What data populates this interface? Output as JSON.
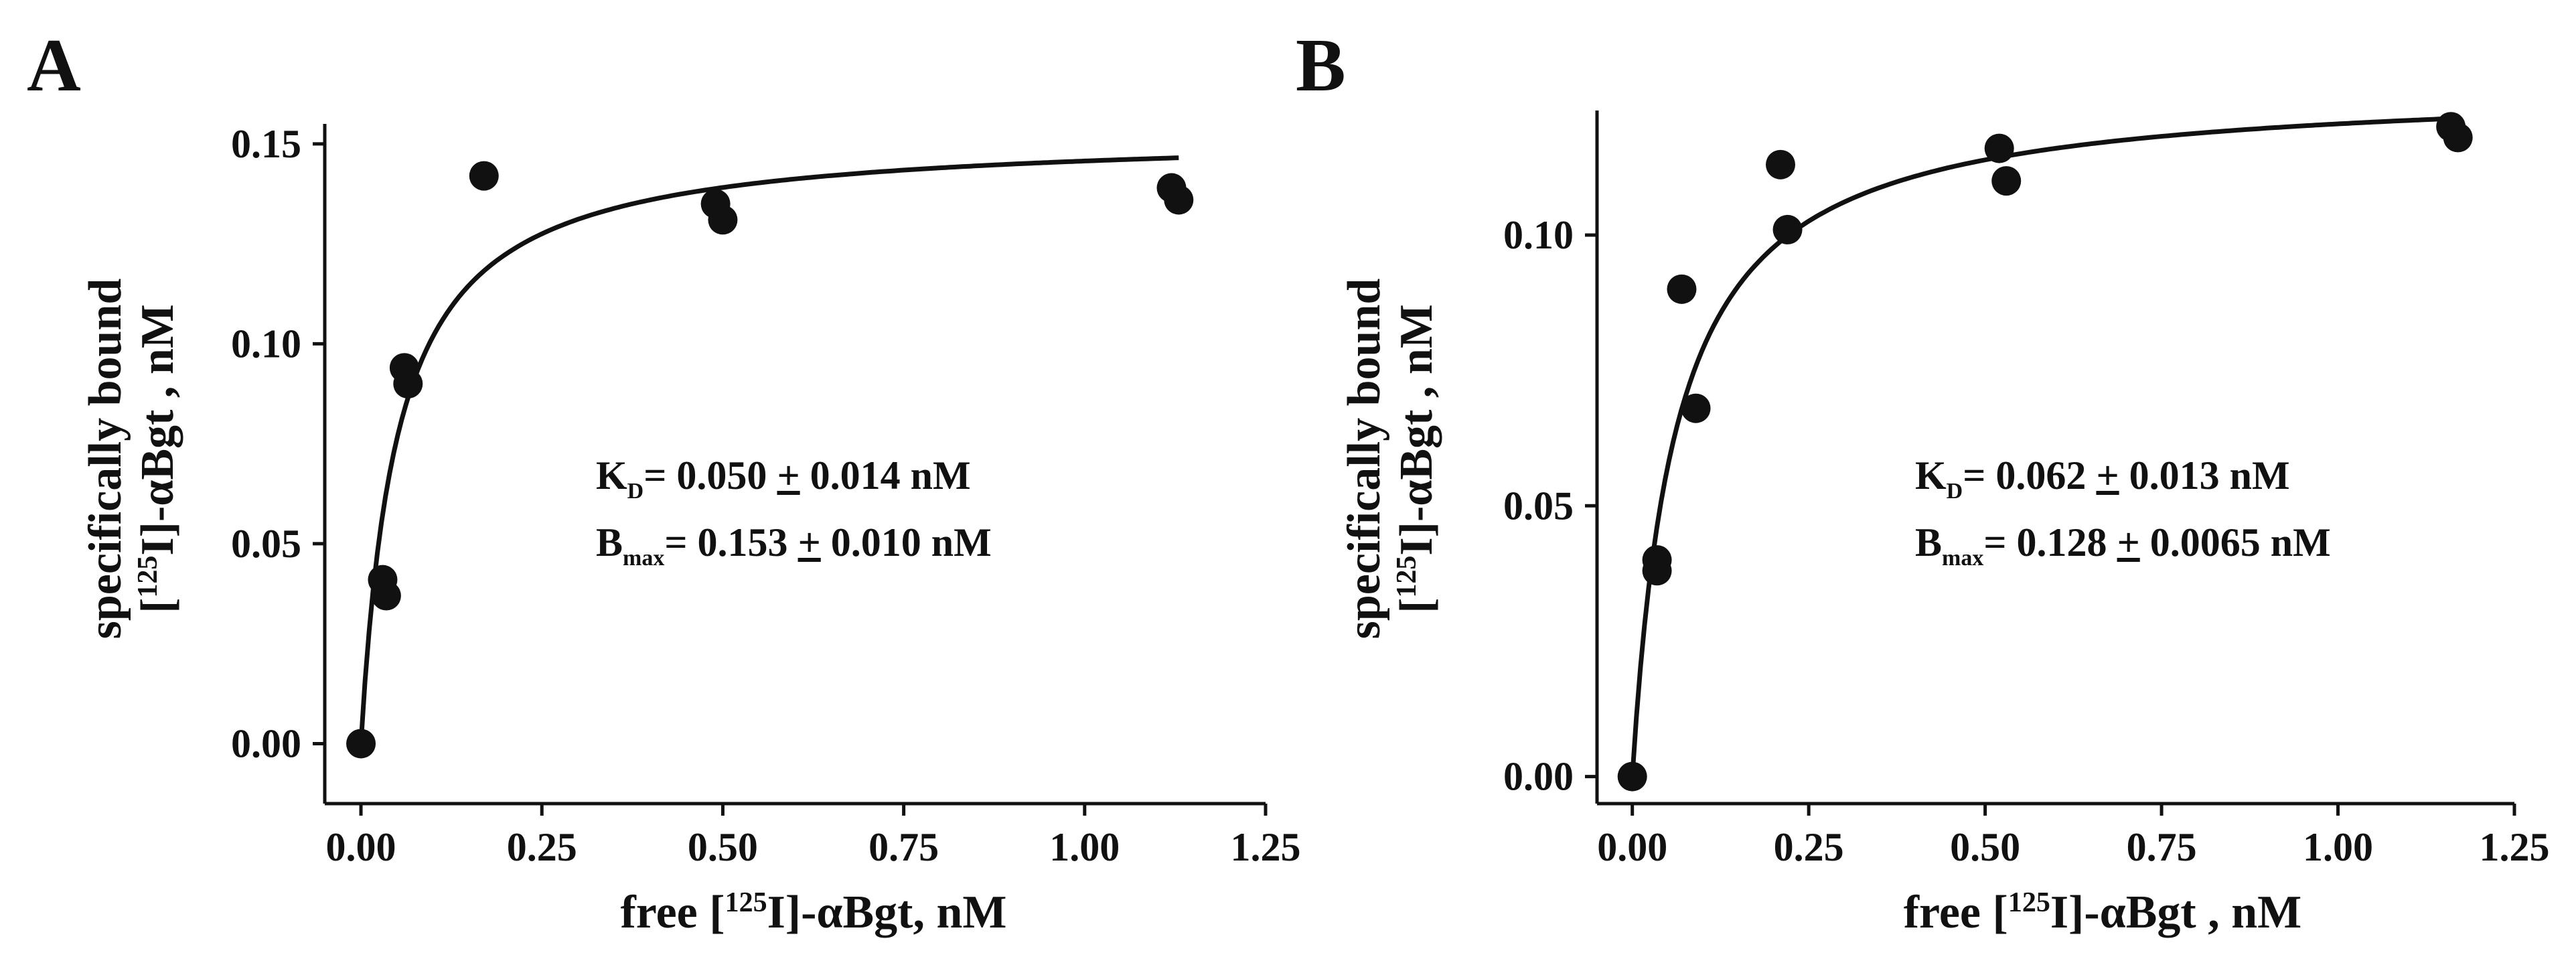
{
  "chart_data": [
    {
      "panel": "A",
      "type": "scatter",
      "xlabel": {
        "prefix": "free [",
        "sup": "125",
        "suffix": "I]-αBgt, nM"
      },
      "ylabel": {
        "line1": "specifically bound",
        "line2_prefix": "[",
        "line2_sup": "125",
        "line2_suffix": "I]-αBgt , nM"
      },
      "xlim": [
        -0.05,
        1.25
      ],
      "ylim": [
        -0.015,
        0.155
      ],
      "xticks": [
        0.0,
        0.25,
        0.5,
        0.75,
        1.0,
        1.25
      ],
      "xtick_labels": [
        "0.00",
        "0.25",
        "0.50",
        "0.75",
        "1.00",
        "1.25"
      ],
      "yticks": [
        0.0,
        0.05,
        0.1,
        0.15
      ],
      "ytick_labels": [
        "0.00",
        "0.05",
        "0.10",
        "0.15"
      ],
      "points": [
        {
          "x": 0.0,
          "y": 0.0
        },
        {
          "x": 0.03,
          "y": 0.041
        },
        {
          "x": 0.035,
          "y": 0.037
        },
        {
          "x": 0.06,
          "y": 0.094
        },
        {
          "x": 0.065,
          "y": 0.09
        },
        {
          "x": 0.17,
          "y": 0.142
        },
        {
          "x": 0.49,
          "y": 0.135
        },
        {
          "x": 0.5,
          "y": 0.131
        },
        {
          "x": 1.12,
          "y": 0.139
        },
        {
          "x": 1.13,
          "y": 0.136
        }
      ],
      "fit": {
        "model": "one-site binding",
        "Kd": 0.05,
        "Bmax": 0.153,
        "x_range": [
          0.0,
          1.13
        ]
      },
      "annotation": {
        "kd_label": "K",
        "kd_sub": "D",
        "kd_value": "=  0.050 ",
        "kd_pm": "+",
        "kd_err": " 0.014 nM",
        "bmax_label": "B",
        "bmax_sub": "max",
        "bmax_value": "= 0.153 ",
        "bmax_pm": "+",
        "bmax_err": " 0.010 nM"
      }
    },
    {
      "panel": "B",
      "type": "scatter",
      "xlabel": {
        "prefix": "free [",
        "sup": "125",
        "suffix": "I]-αBgt , nM"
      },
      "ylabel": {
        "line1": "specifically bound",
        "line2_prefix": "[",
        "line2_sup": "125",
        "line2_suffix": "I]-αBgt , nM"
      },
      "xlim": [
        -0.05,
        1.25
      ],
      "ylim": [
        -0.005,
        0.123
      ],
      "xticks": [
        0.0,
        0.25,
        0.5,
        0.75,
        1.0,
        1.25
      ],
      "xtick_labels": [
        "0.00",
        "0.25",
        "0.50",
        "0.75",
        "1.00",
        "1.25"
      ],
      "yticks": [
        0.0,
        0.05,
        0.1
      ],
      "ytick_labels": [
        "0.00",
        "0.05",
        "0.10"
      ],
      "points": [
        {
          "x": 0.0,
          "y": 0.0
        },
        {
          "x": 0.035,
          "y": 0.04
        },
        {
          "x": 0.035,
          "y": 0.038
        },
        {
          "x": 0.07,
          "y": 0.09
        },
        {
          "x": 0.09,
          "y": 0.068
        },
        {
          "x": 0.21,
          "y": 0.113
        },
        {
          "x": 0.22,
          "y": 0.101
        },
        {
          "x": 0.52,
          "y": 0.116
        },
        {
          "x": 0.53,
          "y": 0.11
        },
        {
          "x": 1.16,
          "y": 0.12
        },
        {
          "x": 1.17,
          "y": 0.118
        }
      ],
      "fit": {
        "model": "one-site binding",
        "Kd": 0.062,
        "Bmax": 0.128,
        "x_range": [
          0.0,
          1.16
        ]
      },
      "annotation": {
        "kd_label": "K",
        "kd_sub": "D",
        "kd_value": "=  0.062 ",
        "kd_pm": "+",
        "kd_err": " 0.013 nM",
        "bmax_label": "B",
        "bmax_sub": "max",
        "bmax_value": "= 0.128 ",
        "bmax_pm": "+",
        "bmax_err": " 0.0065 nM"
      }
    }
  ]
}
